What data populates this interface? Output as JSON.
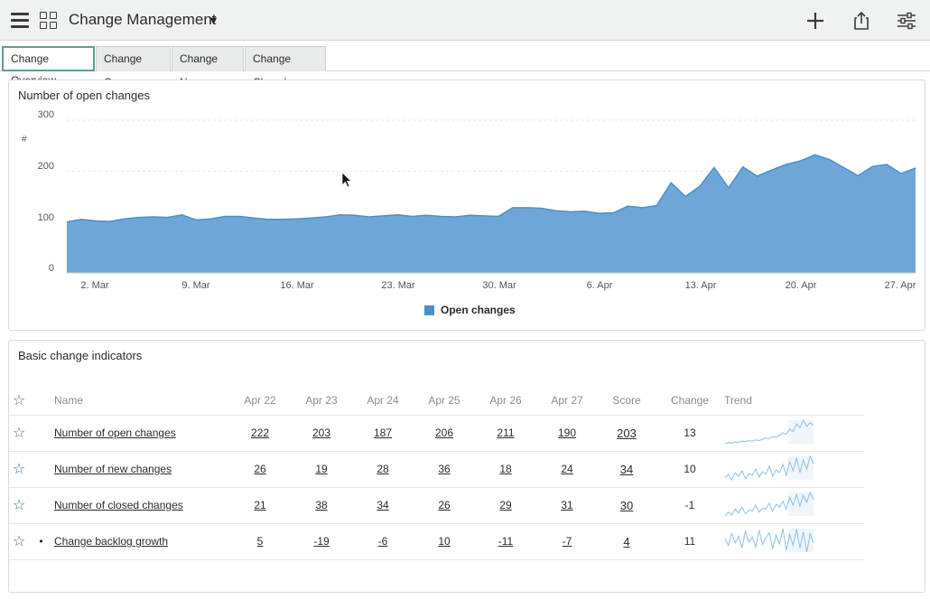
{
  "header": {
    "title": "Change Management"
  },
  "tabs": [
    {
      "label": "Change Overview",
      "active": true
    },
    {
      "label": "Change Open",
      "active": false
    },
    {
      "label": "Change New",
      "active": false
    },
    {
      "label": "Change Closed",
      "active": false
    }
  ],
  "chart_panel": {
    "title": "Number of open changes",
    "y_unit_label": "#"
  },
  "chart_data": {
    "type": "area",
    "title": "Number of open changes",
    "ylabel": "#",
    "ylim": [
      0,
      300
    ],
    "yticks": [
      "300",
      "200",
      "100",
      "0"
    ],
    "xticks": [
      "2. Mar",
      "9. Mar",
      "16. Mar",
      "23. Mar",
      "30. Mar",
      "6. Apr",
      "13. Apr",
      "20. Apr",
      "27. Apr"
    ],
    "legend": "bottom-center",
    "grid": true,
    "color": "#4a90cc",
    "series": [
      {
        "name": "Open changes",
        "x_start": "2020-02-28",
        "values": [
          100,
          105,
          102,
          101,
          106,
          109,
          110,
          109,
          114,
          104,
          106,
          111,
          111,
          108,
          105,
          105,
          106,
          108,
          110,
          114,
          113,
          110,
          112,
          114,
          111,
          113,
          111,
          110,
          113,
          112,
          111,
          128,
          128,
          127,
          122,
          120,
          121,
          117,
          118,
          131,
          128,
          132,
          177,
          150,
          170,
          207,
          167,
          208,
          190,
          202,
          213,
          220,
          232,
          223,
          207,
          191,
          209,
          213,
          195,
          206
        ]
      }
    ]
  },
  "indicators": {
    "title": "Basic change indicators",
    "columns": {
      "name": "Name",
      "days": [
        "Apr 22",
        "Apr 23",
        "Apr 24",
        "Apr 25",
        "Apr 26",
        "Apr 27"
      ],
      "score": "Score",
      "change": "Change",
      "trend": "Trend"
    },
    "rows": [
      {
        "name": "Number of open changes",
        "values": [
          "222",
          "203",
          "187",
          "206",
          "211",
          "190"
        ],
        "score": "203",
        "change": "13",
        "bullet": false,
        "trend": [
          95,
          97,
          96,
          98,
          97,
          99,
          98,
          100,
          99,
          101,
          100,
          102,
          104,
          103,
          106,
          105,
          108,
          112,
          110,
          118,
          114,
          126,
          120,
          132,
          122,
          128,
          124
        ]
      },
      {
        "name": "Number of new changes",
        "values": [
          "26",
          "19",
          "28",
          "36",
          "18",
          "24"
        ],
        "score": "34",
        "change": "10",
        "bullet": false,
        "trend": [
          20,
          24,
          18,
          26,
          22,
          28,
          19,
          25,
          23,
          30,
          21,
          27,
          24,
          33,
          22,
          29,
          26,
          35,
          23,
          38,
          28,
          42,
          26,
          40,
          30,
          44,
          36
        ]
      },
      {
        "name": "Number of closed changes",
        "values": [
          "21",
          "38",
          "34",
          "26",
          "29",
          "31"
        ],
        "score": "30",
        "change": "-1",
        "bullet": false,
        "trend": [
          18,
          22,
          19,
          25,
          21,
          27,
          20,
          24,
          23,
          29,
          22,
          26,
          25,
          31,
          23,
          30,
          27,
          33,
          25,
          37,
          29,
          40,
          28,
          39,
          32,
          42,
          35
        ]
      },
      {
        "name": "Change backlog growth",
        "values": [
          "5",
          "-19",
          "-6",
          "10",
          "-11",
          "-7"
        ],
        "score": "4",
        "change": "11",
        "bullet": true,
        "trend": [
          2,
          -6,
          8,
          -3,
          5,
          -9,
          11,
          -2,
          4,
          -8,
          12,
          -5,
          3,
          9,
          -10,
          6,
          -4,
          14,
          -12,
          7,
          -6,
          13,
          -9,
          10,
          -14,
          8,
          -3
        ]
      }
    ]
  }
}
